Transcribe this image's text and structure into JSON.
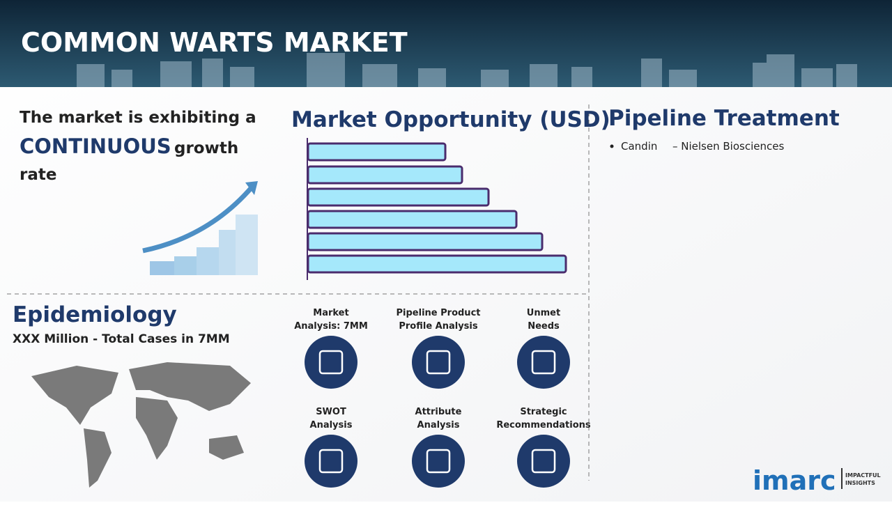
{
  "header": {
    "title": "COMMON WARTS MARKET"
  },
  "growth": {
    "line1": "The market is exhibiting a",
    "highlight": "CONTINUOUS",
    "word": "growth",
    "line3": "rate"
  },
  "market_opportunity": {
    "title": "Market Opportunity (USD)"
  },
  "pipeline": {
    "title": "Pipeline Treatment",
    "items": [
      {
        "name": "Candin",
        "company": "– Nielsen Biosciences"
      }
    ]
  },
  "epidemiology": {
    "title": "Epidemiology",
    "subtitle": "XXX Million - Total Cases in 7MM"
  },
  "features": [
    {
      "lines": [
        "Market",
        "Analysis: 7MM"
      ]
    },
    {
      "lines": [
        "Pipeline Product",
        "Profile Analysis"
      ]
    },
    {
      "lines": [
        "Unmet",
        "Needs"
      ]
    },
    {
      "lines": [
        "SWOT",
        "Analysis"
      ]
    },
    {
      "lines": [
        "Attribute",
        "Analysis"
      ]
    },
    {
      "lines": [
        "Strategic",
        "Recommendations"
      ]
    }
  ],
  "logo": {
    "brand": "imarc",
    "tagline": [
      "IMPACTFUL",
      "INSIGHTS"
    ]
  }
}
